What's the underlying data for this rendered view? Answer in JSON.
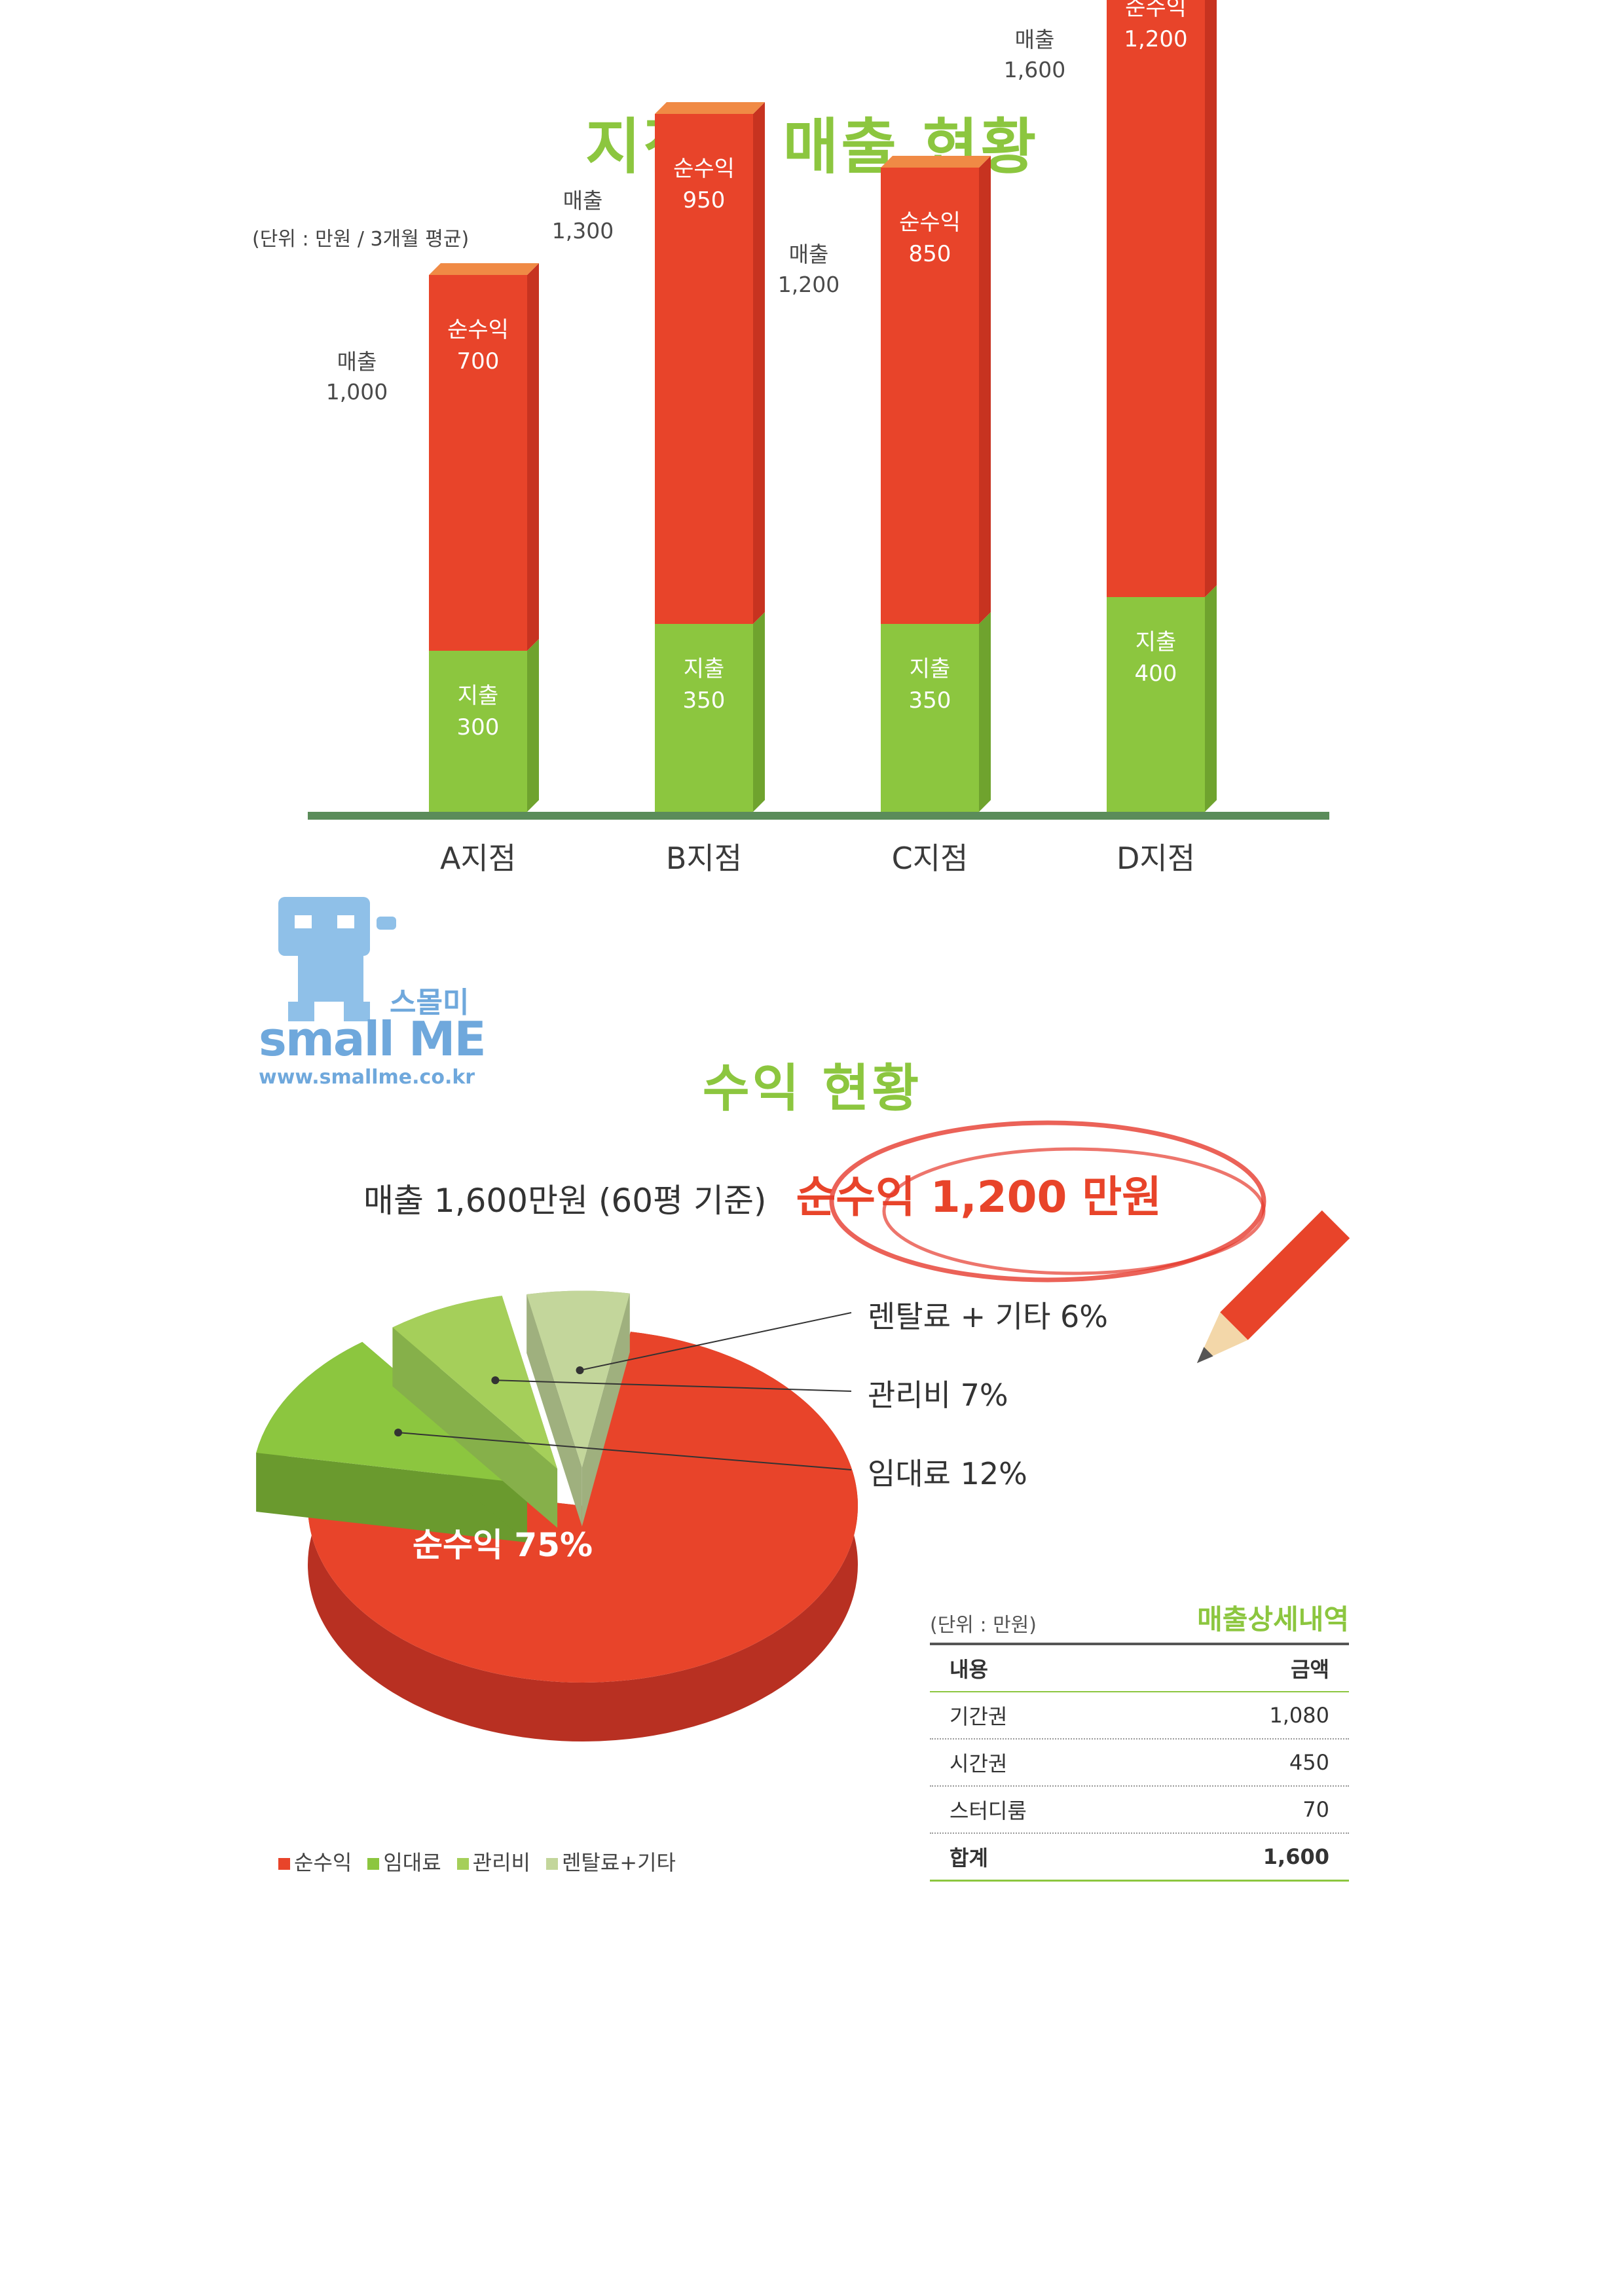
{
  "page": {
    "title": "지점별 매출 현황",
    "unit_note": "(단위 : 만원 / 3개월 평균)"
  },
  "logo": {
    "korean": "스몰미",
    "brand": "small ME",
    "url": "www.smallme.co.kr"
  },
  "chart_data": [
    {
      "type": "bar",
      "stacked": true,
      "title": "지점별 매출 현황",
      "categories": [
        "A지점",
        "B지점",
        "C지점",
        "D지점"
      ],
      "series": [
        {
          "name": "지출",
          "values": [
            300,
            350,
            350,
            400
          ]
        },
        {
          "name": "순수익",
          "values": [
            700,
            950,
            850,
            1200
          ]
        }
      ],
      "totals": {
        "name": "매출",
        "values": [
          "1,000",
          "1,300",
          "1,200",
          "1,600"
        ]
      },
      "value_labels": {
        "expense": [
          "300",
          "350",
          "350",
          "400"
        ],
        "profit": [
          "700",
          "950",
          "850",
          "1,200"
        ]
      },
      "ylim": [
        0,
        1600
      ],
      "colors": {
        "expense": "#8cc63f",
        "profit": "#e8442a",
        "baseline": "#5b8c5a"
      }
    },
    {
      "type": "pie",
      "title": "수익 현황",
      "headline": {
        "prefix": "매출 1,600만원 (60평 기준)",
        "highlight": "순수익 1,200 만원"
      },
      "slices": [
        {
          "name": "순수익",
          "value": 75,
          "label": "순수익 75%",
          "color": "#e8442a"
        },
        {
          "name": "임대료",
          "value": 12,
          "label": "임대료 12%",
          "color": "#8cc63f"
        },
        {
          "name": "관리비",
          "value": 7,
          "label": "관리비 7%",
          "color": "#a5cf5a"
        },
        {
          "name": "렌탈료+기타",
          "value": 6,
          "label": "렌탈료 + 기타 6%",
          "color": "#c3d69b"
        }
      ],
      "legend": [
        "순수익",
        "임대료",
        "관리비",
        "렌탈료+기타"
      ]
    },
    {
      "type": "table",
      "title": "매출상세내역",
      "unit_note": "(단위 : 만원)",
      "headers": [
        "내용",
        "금액"
      ],
      "rows": [
        [
          "기간권",
          "1,080"
        ],
        [
          "시간권",
          "450"
        ],
        [
          "스터디룸",
          "70"
        ]
      ],
      "total": [
        "합계",
        "1,600"
      ]
    }
  ]
}
